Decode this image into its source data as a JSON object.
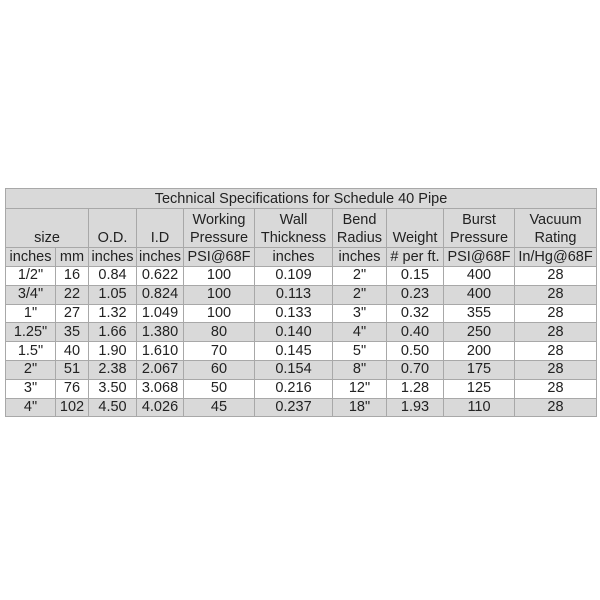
{
  "title": "Technical Specifications for Schedule 40 Pipe",
  "headers": [
    {
      "label": "size",
      "span": 2
    },
    {
      "label": "O.D.",
      "span": 1
    },
    {
      "label": "I.D",
      "span": 1
    },
    {
      "label": "Working\nPressure",
      "span": 1
    },
    {
      "label": "Wall\nThickness",
      "span": 1
    },
    {
      "label": "Bend\nRadius",
      "span": 1
    },
    {
      "label": "Weight",
      "span": 1
    },
    {
      "label": "Burst\nPressure",
      "span": 1
    },
    {
      "label": "Vacuum\nRating",
      "span": 1
    }
  ],
  "units": [
    "inches",
    "mm",
    "inches",
    "inches",
    "PSI@68F",
    "inches",
    "inches",
    "# per ft.",
    "PSI@68F",
    "In/Hg@68F"
  ],
  "rows": [
    [
      "1/2\"",
      "16",
      "0.84",
      "0.622",
      "100",
      "0.109",
      "2\"",
      "0.15",
      "400",
      "28"
    ],
    [
      "3/4\"",
      "22",
      "1.05",
      "0.824",
      "100",
      "0.113",
      "2\"",
      "0.23",
      "400",
      "28"
    ],
    [
      "1\"",
      "27",
      "1.32",
      "1.049",
      "100",
      "0.133",
      "3\"",
      "0.32",
      "355",
      "28"
    ],
    [
      "1.25\"",
      "35",
      "1.66",
      "1.380",
      "80",
      "0.140",
      "4\"",
      "0.40",
      "250",
      "28"
    ],
    [
      "1.5\"",
      "40",
      "1.90",
      "1.610",
      "70",
      "0.145",
      "5\"",
      "0.50",
      "200",
      "28"
    ],
    [
      "2\"",
      "51",
      "2.38",
      "2.067",
      "60",
      "0.154",
      "8\"",
      "0.70",
      "175",
      "28"
    ],
    [
      "3\"",
      "76",
      "3.50",
      "3.068",
      "50",
      "0.216",
      "12\"",
      "1.28",
      "125",
      "28"
    ],
    [
      "4\"",
      "102",
      "4.50",
      "4.026",
      "45",
      "0.237",
      "18\"",
      "1.93",
      "110",
      "28"
    ]
  ],
  "colors": {
    "shade": "#d9d9d9",
    "grid": "#a8a8a8"
  }
}
